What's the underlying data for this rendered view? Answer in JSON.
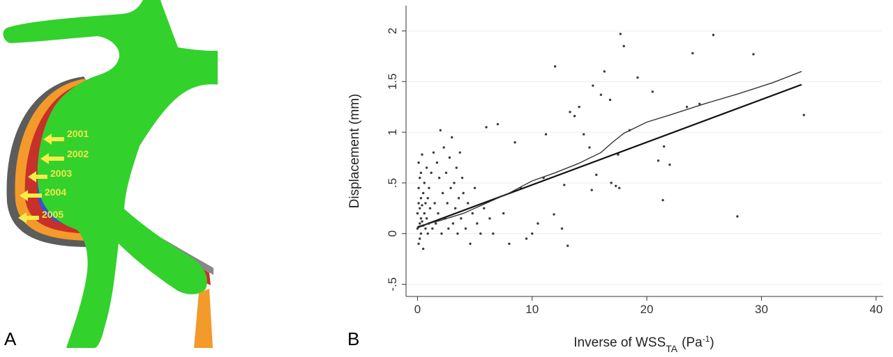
{
  "panels": {
    "a_label": "A",
    "b_label": "B"
  },
  "vessel": {
    "year_labels": [
      "2001",
      "2002",
      "2003",
      "2004",
      "2005"
    ],
    "colors": {
      "current": "#33d12c",
      "layer_2004": "#c8302a",
      "layer_2003": "#3355cc",
      "layer_2002": "#f39a2a",
      "layer_2001": "#5a5a5a",
      "arrow": "#f5ec4a"
    }
  },
  "chart_data": {
    "type": "scatter",
    "title": "",
    "xlabel_main": "Inverse of WSS",
    "xlabel_sub": "TA",
    "xlabel_unit_open": "(Pa",
    "xlabel_unit_sup": "-1",
    "xlabel_unit_close": ")",
    "ylabel": "Displacement (mm)",
    "xlim": [
      -1,
      40.5
    ],
    "ylim": [
      -0.62,
      2.25
    ],
    "xticks": [
      0,
      10,
      20,
      30,
      40
    ],
    "xtick_labels": [
      "0",
      "10",
      "20",
      "30",
      "40"
    ],
    "yticks": [
      -0.5,
      0,
      0.5,
      1,
      1.5,
      2
    ],
    "ytick_labels": [
      "-.5",
      "0",
      ".5",
      "1",
      "1.5",
      "2"
    ],
    "grid": "horizontal",
    "colors": {
      "points": "#3a3a3a",
      "fit": "#111111",
      "smooth": "#333333"
    },
    "linear_fit": {
      "x": [
        0,
        33.5
      ],
      "y": [
        0.06,
        1.47
      ]
    },
    "smooth_curve": {
      "x": [
        0,
        2,
        4,
        6,
        8,
        10,
        12,
        14,
        16,
        17,
        18,
        20,
        22,
        25,
        28,
        31,
        33.5
      ],
      "y": [
        0.07,
        0.13,
        0.2,
        0.3,
        0.4,
        0.52,
        0.6,
        0.69,
        0.8,
        0.9,
        0.99,
        1.1,
        1.17,
        1.28,
        1.38,
        1.49,
        1.6
      ]
    },
    "scatter_sample_x": [
      0.0,
      0.0,
      0.1,
      0.1,
      0.1,
      0.1,
      0.2,
      0.2,
      0.2,
      0.2,
      0.3,
      0.3,
      0.3,
      0.3,
      0.4,
      0.4,
      0.4,
      0.5,
      0.5,
      0.5,
      0.6,
      0.6,
      0.7,
      0.7,
      0.8,
      0.8,
      0.9,
      0.9,
      1.0,
      1.0,
      1.1,
      1.2,
      1.3,
      1.4,
      1.5,
      1.6,
      1.7,
      1.8,
      1.9,
      2.0,
      2.1,
      2.2,
      2.3,
      2.4,
      2.5,
      2.6,
      2.7,
      2.8,
      2.9,
      3.0,
      3.1,
      3.2,
      3.3,
      3.4,
      3.5,
      3.6,
      3.7,
      3.8,
      3.9,
      4.0,
      4.2,
      4.4,
      4.6,
      4.8,
      5.0,
      5.2,
      5.5,
      5.8,
      6.0,
      6.3,
      6.6,
      7.0,
      7.5,
      8.0,
      8.5,
      9.0,
      9.5,
      10.0,
      10.5,
      11.0
    ],
    "scatter_sample_y": [
      0.05,
      0.2,
      -0.1,
      0.3,
      0.45,
      0.7,
      0.1,
      0.25,
      0.55,
      -0.05,
      0.15,
      0.35,
      0.6,
      0.0,
      0.12,
      0.28,
      0.78,
      0.08,
      0.4,
      -0.15,
      0.2,
      0.5,
      0.05,
      0.3,
      0.15,
      0.65,
      0.0,
      0.35,
      0.1,
      0.45,
      0.25,
      0.6,
      0.05,
      0.8,
      0.3,
      0.1,
      0.7,
      0.2,
      0.55,
      1.02,
      0.0,
      0.4,
      0.85,
      0.15,
      0.6,
      0.3,
      0.05,
      0.75,
      0.45,
      0.95,
      0.1,
      0.5,
      0.25,
      0.65,
      0.0,
      0.35,
      0.8,
      0.15,
      0.55,
      0.4,
      0.05,
      0.3,
      -0.1,
      0.2,
      0.45,
      0.1,
      0.0,
      0.25,
      1.05,
      0.15,
      0.0,
      1.08,
      0.2,
      -0.1,
      0.9,
      0.45,
      -0.05,
      0.0,
      0.1,
      0.55
    ],
    "outliers_x": [
      11.2,
      12.0,
      12.8,
      13.3,
      13.7,
      14.1,
      14.5,
      15.0,
      15.3,
      15.6,
      16.0,
      16.3,
      16.8,
      17.3,
      17.5,
      17.7,
      18.0,
      18.5,
      19.2,
      20.5,
      21.0,
      21.5,
      22.0,
      23.5,
      24.0,
      24.6,
      25.8,
      27.9,
      29.3,
      33.7,
      15.2,
      16.9,
      17.6,
      21.4,
      13.1,
      12.6,
      11.9
    ],
    "outliers_y": [
      0.98,
      1.65,
      0.48,
      1.2,
      1.16,
      1.25,
      0.98,
      0.85,
      1.46,
      0.58,
      1.37,
      1.6,
      1.32,
      0.47,
      0.78,
      1.97,
      1.85,
      1.02,
      1.54,
      1.4,
      0.72,
      0.86,
      0.68,
      1.25,
      1.78,
      1.28,
      1.96,
      0.17,
      1.77,
      1.17,
      0.43,
      0.5,
      0.45,
      0.33,
      -0.12,
      0.05,
      0.19
    ]
  }
}
